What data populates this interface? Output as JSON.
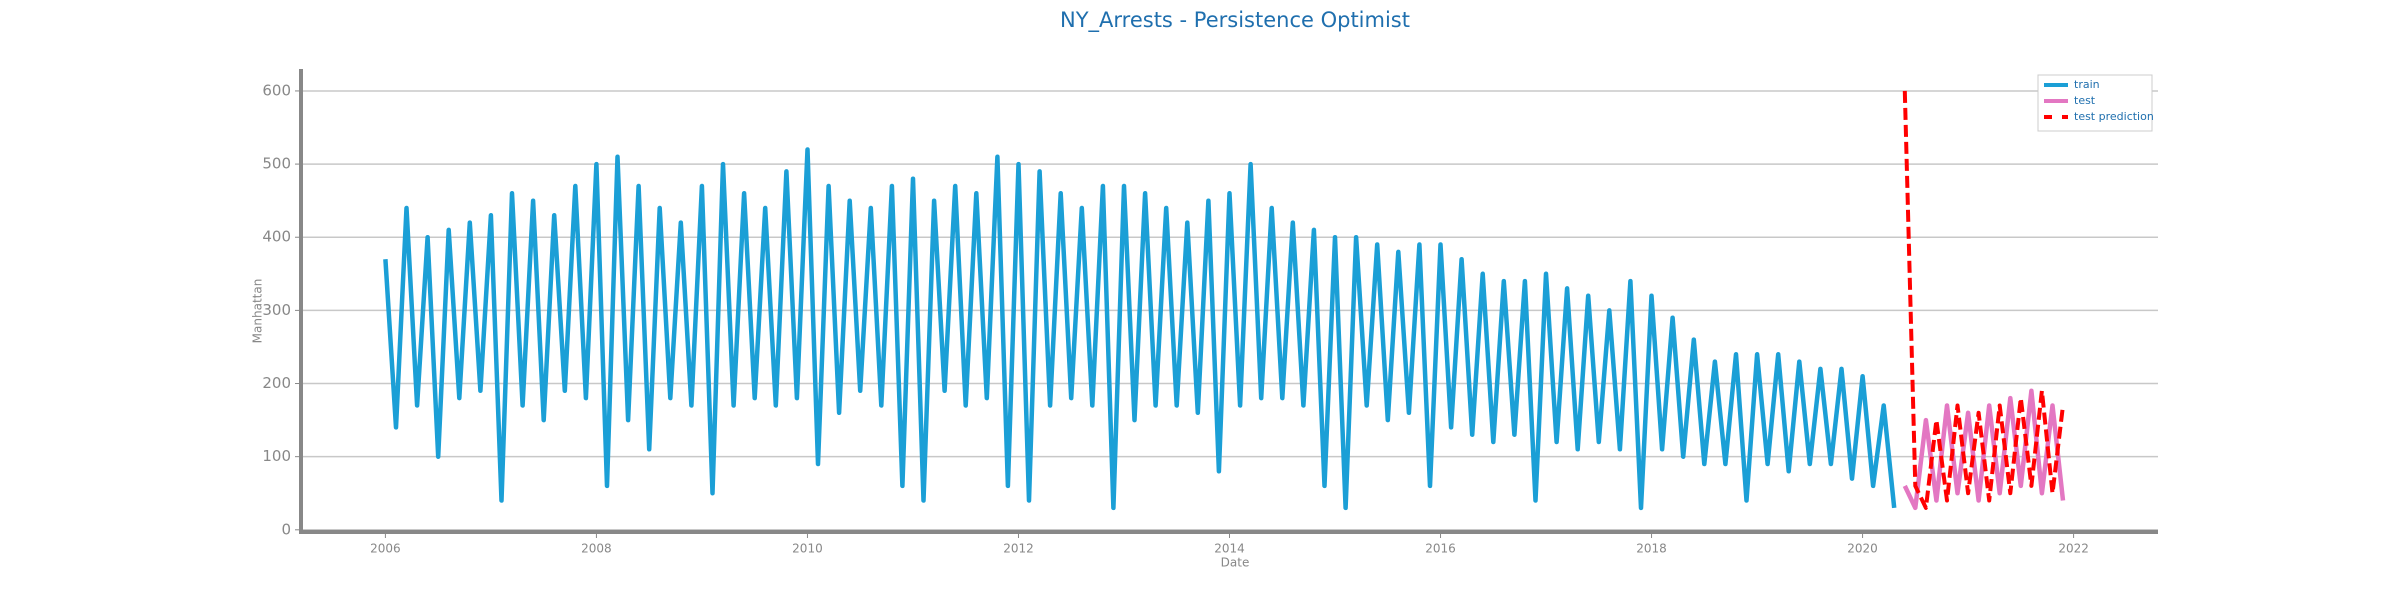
{
  "chart_data": {
    "type": "line",
    "title": "NY_Arrests - Persistence Optimist",
    "x_label": "Date",
    "y_label": "Manhattan",
    "xlim": [
      2005.2,
      2022.8
    ],
    "xticks": [
      2006,
      2008,
      2010,
      2012,
      2014,
      2016,
      2018,
      2020,
      2022
    ],
    "ylim": [
      -3,
      630
    ],
    "yticks": [
      0,
      100,
      200,
      300,
      400,
      500,
      600
    ],
    "grid": true,
    "legend": "upper right",
    "series": [
      {
        "name": "train",
        "color": "#1b9fd6",
        "linestyle": "solid",
        "x": [
          2006.0,
          2006.1,
          2006.2,
          2006.3,
          2006.4,
          2006.5,
          2006.6,
          2006.7,
          2006.8,
          2006.9,
          2007.0,
          2007.1,
          2007.2,
          2007.3,
          2007.4,
          2007.5,
          2007.6,
          2007.7,
          2007.8,
          2007.9,
          2008.0,
          2008.1,
          2008.2,
          2008.3,
          2008.4,
          2008.5,
          2008.6,
          2008.7,
          2008.8,
          2008.9,
          2009.0,
          2009.1,
          2009.2,
          2009.3,
          2009.4,
          2009.5,
          2009.6,
          2009.7,
          2009.8,
          2009.9,
          2010.0,
          2010.1,
          2010.2,
          2010.3,
          2010.4,
          2010.5,
          2010.6,
          2010.7,
          2010.8,
          2010.9,
          2011.0,
          2011.1,
          2011.2,
          2011.3,
          2011.4,
          2011.5,
          2011.6,
          2011.7,
          2011.8,
          2011.9,
          2012.0,
          2012.1,
          2012.2,
          2012.3,
          2012.4,
          2012.5,
          2012.6,
          2012.7,
          2012.8,
          2012.9,
          2013.0,
          2013.1,
          2013.2,
          2013.3,
          2013.4,
          2013.5,
          2013.6,
          2013.7,
          2013.8,
          2013.9,
          2014.0,
          2014.1,
          2014.2,
          2014.3,
          2014.4,
          2014.5,
          2014.6,
          2014.7,
          2014.8,
          2014.9,
          2015.0,
          2015.1,
          2015.2,
          2015.3,
          2015.4,
          2015.5,
          2015.6,
          2015.7,
          2015.8,
          2015.9,
          2016.0,
          2016.1,
          2016.2,
          2016.3,
          2016.4,
          2016.5,
          2016.6,
          2016.7,
          2016.8,
          2016.9,
          2017.0,
          2017.1,
          2017.2,
          2017.3,
          2017.4,
          2017.5,
          2017.6,
          2017.7,
          2017.8,
          2017.9,
          2018.0,
          2018.1,
          2018.2,
          2018.3,
          2018.4,
          2018.5,
          2018.6,
          2018.7,
          2018.8,
          2018.9,
          2019.0,
          2019.1,
          2019.2,
          2019.3,
          2019.4,
          2019.5,
          2019.6,
          2019.7,
          2019.8,
          2019.9,
          2020.0,
          2020.1,
          2020.2,
          2020.3
        ],
        "values": [
          370,
          140,
          440,
          170,
          400,
          100,
          410,
          180,
          420,
          190,
          430,
          40,
          460,
          170,
          450,
          150,
          430,
          190,
          470,
          180,
          500,
          60,
          510,
          150,
          470,
          110,
          440,
          180,
          420,
          170,
          470,
          50,
          500,
          170,
          460,
          180,
          440,
          170,
          490,
          180,
          520,
          90,
          470,
          160,
          450,
          190,
          440,
          170,
          470,
          60,
          480,
          40,
          450,
          190,
          470,
          170,
          460,
          180,
          510,
          60,
          500,
          40,
          490,
          170,
          460,
          180,
          440,
          170,
          470,
          30,
          470,
          150,
          460,
          170,
          440,
          170,
          420,
          160,
          450,
          80,
          460,
          170,
          500,
          180,
          440,
          180,
          420,
          170,
          410,
          60,
          400,
          30,
          400,
          170,
          390,
          150,
          380,
          160,
          390,
          60,
          390,
          140,
          370,
          130,
          350,
          120,
          340,
          130,
          340,
          40,
          350,
          120,
          330,
          110,
          320,
          120,
          300,
          110,
          340,
          30,
          320,
          110,
          290,
          100,
          260,
          90,
          230,
          90,
          240,
          40,
          240,
          90,
          240,
          80,
          230,
          90,
          220,
          90,
          220,
          70,
          210,
          60,
          170,
          30
        ]
      },
      {
        "name": "test",
        "color": "#e377c2",
        "linestyle": "solid",
        "x": [
          2020.4,
          2020.5,
          2020.6,
          2020.7,
          2020.8,
          2020.9,
          2021.0,
          2021.1,
          2021.2,
          2021.3,
          2021.4,
          2021.5,
          2021.6,
          2021.7,
          2021.8,
          2021.9
        ],
        "values": [
          60,
          30,
          150,
          40,
          170,
          50,
          160,
          40,
          170,
          50,
          180,
          60,
          190,
          50,
          170,
          40
        ]
      },
      {
        "name": "test prediction",
        "color": "#ff0000",
        "linestyle": "dashed",
        "x": [
          2020.4,
          2020.5,
          2020.6,
          2020.7,
          2020.8,
          2020.9,
          2021.0,
          2021.1,
          2021.2,
          2021.3,
          2021.4,
          2021.5,
          2021.6,
          2021.7,
          2021.8,
          2021.9
        ],
        "values": [
          600,
          60,
          30,
          150,
          40,
          170,
          50,
          160,
          40,
          170,
          50,
          180,
          60,
          190,
          50,
          170
        ]
      }
    ]
  }
}
